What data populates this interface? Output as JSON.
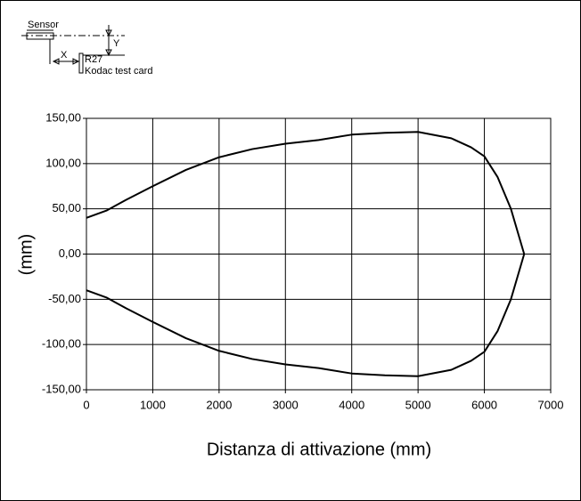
{
  "chart_data": {
    "type": "line",
    "annotations": [
      "Sensor",
      "X",
      "Y",
      "R27",
      "Kodac test card"
    ],
    "xlabel": "Distanza di attivazione (mm)",
    "ylabel": "(mm)",
    "x": [
      0,
      300,
      600,
      1000,
      1500,
      2000,
      2500,
      3000,
      3500,
      4000,
      4500,
      5000,
      5500,
      5800,
      6000,
      6200,
      6400,
      6600
    ],
    "series": [
      {
        "color": "#000000",
        "values": [
          40,
          48,
          60,
          75,
          93,
          107,
          116,
          122,
          126,
          132,
          134,
          135,
          128,
          118,
          108,
          85,
          50,
          0
        ]
      },
      {
        "color": "#000000",
        "values": [
          -40,
          -48,
          -60,
          -75,
          -93,
          -107,
          -116,
          -122,
          -126,
          -132,
          -134,
          -135,
          -128,
          -118,
          -108,
          -85,
          -50,
          0
        ]
      }
    ],
    "xlim": [
      0,
      7000
    ],
    "xticks": [
      0,
      1000,
      2000,
      3000,
      4000,
      5000,
      6000,
      7000
    ],
    "ylim": [
      -150,
      150
    ],
    "yticks": [
      {
        "value": -150,
        "label": "-150,00"
      },
      {
        "value": -100,
        "label": "-100,00"
      },
      {
        "value": -50,
        "label": "-50,00"
      },
      {
        "value": 0,
        "label": "0,00"
      },
      {
        "value": 50,
        "label": "50,00"
      },
      {
        "value": 100,
        "label": "100,00"
      },
      {
        "value": 150,
        "label": "150,00"
      }
    ],
    "grid": true
  }
}
